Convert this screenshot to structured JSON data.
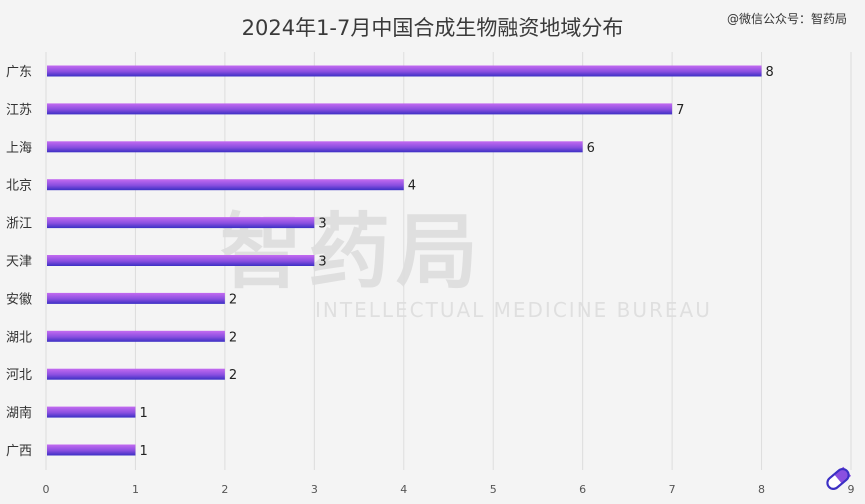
{
  "header": {
    "title": "2024年1-7月中国合成生物融资地域分布",
    "credit": "@微信公众号：智药局"
  },
  "watermark": {
    "cn": "智药局",
    "en": "INTELLECTUAL MEDICINE BUREAU"
  },
  "chart_data": {
    "type": "bar",
    "orientation": "horizontal",
    "title": "2024年1-7月中国合成生物融资地域分布",
    "categories": [
      "广东",
      "江苏",
      "上海",
      "北京",
      "浙江",
      "天津",
      "安徽",
      "湖北",
      "河北",
      "湖南",
      "广西"
    ],
    "values": [
      8,
      7,
      6,
      4,
      3,
      3,
      2,
      2,
      2,
      1,
      1
    ],
    "xlim": [
      0,
      9
    ],
    "xticks": [
      0,
      1,
      2,
      3,
      4,
      5,
      6,
      7,
      8,
      9
    ],
    "grid": "vertical",
    "legend": "none",
    "colors": {
      "bar_top": "#c46bf0",
      "bar_bottom": "#3b2fc4",
      "grid": "#dddddd",
      "label": "#333333"
    }
  }
}
